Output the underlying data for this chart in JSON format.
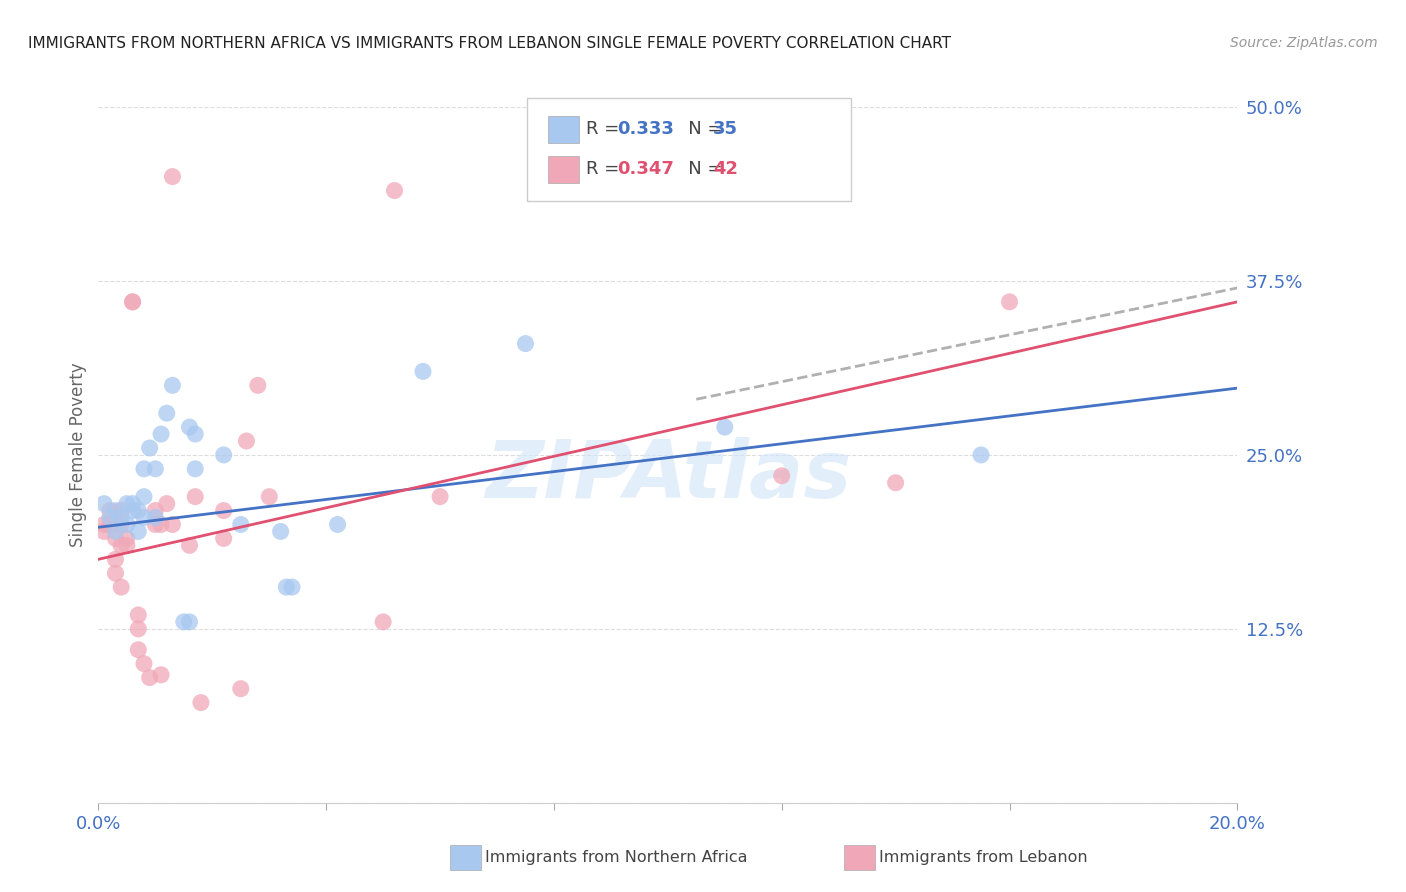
{
  "title": "IMMIGRANTS FROM NORTHERN AFRICA VS IMMIGRANTS FROM LEBANON SINGLE FEMALE POVERTY CORRELATION CHART",
  "source": "Source: ZipAtlas.com",
  "ylabel": "Single Female Poverty",
  "xlim": [
    0.0,
    0.2
  ],
  "ylim": [
    0.0,
    0.5
  ],
  "yticks": [
    0.0,
    0.125,
    0.25,
    0.375,
    0.5
  ],
  "ytick_labels": [
    "",
    "12.5%",
    "25.0%",
    "37.5%",
    "50.0%"
  ],
  "xticks": [
    0.0,
    0.04,
    0.08,
    0.12,
    0.16,
    0.2
  ],
  "xtick_labels": [
    "0.0%",
    "",
    "",
    "",
    "",
    "20.0%"
  ],
  "color_blue": "#a8c8f0",
  "color_pink": "#f0a8b8",
  "color_line_blue": "#4472c4",
  "color_line_pink": "#e05070",
  "color_line_dashed": "#b0b0b0",
  "color_axis_blue": "#4472c4",
  "watermark_text": "ZIPAtlas",
  "blue_scatter_x": [
    0.001,
    0.002,
    0.003,
    0.003,
    0.004,
    0.005,
    0.005,
    0.006,
    0.006,
    0.007,
    0.007,
    0.008,
    0.008,
    0.008,
    0.009,
    0.01,
    0.01,
    0.011,
    0.012,
    0.013,
    0.015,
    0.016,
    0.016,
    0.017,
    0.017,
    0.022,
    0.025,
    0.032,
    0.033,
    0.034,
    0.042,
    0.057,
    0.075,
    0.11,
    0.155
  ],
  "blue_scatter_y": [
    0.215,
    0.205,
    0.21,
    0.195,
    0.205,
    0.215,
    0.2,
    0.21,
    0.215,
    0.195,
    0.21,
    0.205,
    0.22,
    0.24,
    0.255,
    0.205,
    0.24,
    0.265,
    0.28,
    0.3,
    0.13,
    0.13,
    0.27,
    0.265,
    0.24,
    0.25,
    0.2,
    0.195,
    0.155,
    0.155,
    0.2,
    0.31,
    0.33,
    0.27,
    0.25
  ],
  "pink_scatter_x": [
    0.001,
    0.001,
    0.002,
    0.002,
    0.003,
    0.003,
    0.003,
    0.004,
    0.004,
    0.004,
    0.004,
    0.005,
    0.005,
    0.006,
    0.006,
    0.007,
    0.007,
    0.007,
    0.008,
    0.009,
    0.01,
    0.01,
    0.011,
    0.011,
    0.012,
    0.013,
    0.013,
    0.016,
    0.017,
    0.018,
    0.022,
    0.022,
    0.025,
    0.026,
    0.028,
    0.03,
    0.05,
    0.052,
    0.06,
    0.12,
    0.14,
    0.16
  ],
  "pink_scatter_y": [
    0.2,
    0.195,
    0.21,
    0.2,
    0.19,
    0.175,
    0.165,
    0.185,
    0.21,
    0.2,
    0.155,
    0.19,
    0.185,
    0.36,
    0.36,
    0.135,
    0.125,
    0.11,
    0.1,
    0.09,
    0.21,
    0.2,
    0.2,
    0.092,
    0.215,
    0.45,
    0.2,
    0.185,
    0.22,
    0.072,
    0.19,
    0.21,
    0.082,
    0.26,
    0.3,
    0.22,
    0.13,
    0.44,
    0.22,
    0.235,
    0.23,
    0.36
  ],
  "blue_line_x": [
    0.0,
    0.2
  ],
  "blue_line_y": [
    0.198,
    0.298
  ],
  "pink_line_x": [
    0.0,
    0.2
  ],
  "pink_line_y": [
    0.175,
    0.36
  ],
  "dashed_line_x": [
    0.105,
    0.2
  ],
  "dashed_line_y": [
    0.29,
    0.37
  ]
}
